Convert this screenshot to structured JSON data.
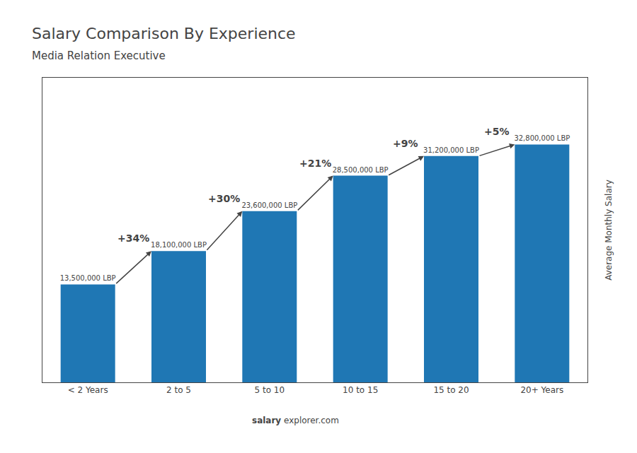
{
  "chart_data": {
    "type": "bar",
    "title": "Salary Comparison By Experience",
    "subtitle": "Media Relation Executive",
    "categories": [
      "< 2 Years",
      "2 to 5",
      "5 to 10",
      "10 to 15",
      "15 to 20",
      "20+ Years"
    ],
    "values": [
      13500000,
      18100000,
      23600000,
      28500000,
      31200000,
      32800000
    ],
    "value_labels": [
      "13,500,000 LBP",
      "18,100,000 LBP",
      "23,600,000 LBP",
      "28,500,000 LBP",
      "31,200,000 LBP",
      "32,800,000 LBP"
    ],
    "data_labels": true,
    "ylabel": "Average Monthly Salary",
    "ylim": [
      0,
      42000000
    ],
    "tick_labels": "x",
    "grid": false,
    "annotations": [
      {
        "text": "+34%",
        "from": "< 2 Years",
        "to": "2 to 5"
      },
      {
        "text": "+30%",
        "from": "2 to 5",
        "to": "5 to 10"
      },
      {
        "text": "+21%",
        "from": "5 to 10",
        "to": "10 to 15"
      },
      {
        "text": "+9%",
        "from": "10 to 15",
        "to": "15 to 20"
      },
      {
        "text": "+5%",
        "from": "15 to 20",
        "to": "20+ Years"
      },
      {
        "text": "salary"
      },
      {
        "text": "explorer.com"
      }
    ]
  }
}
